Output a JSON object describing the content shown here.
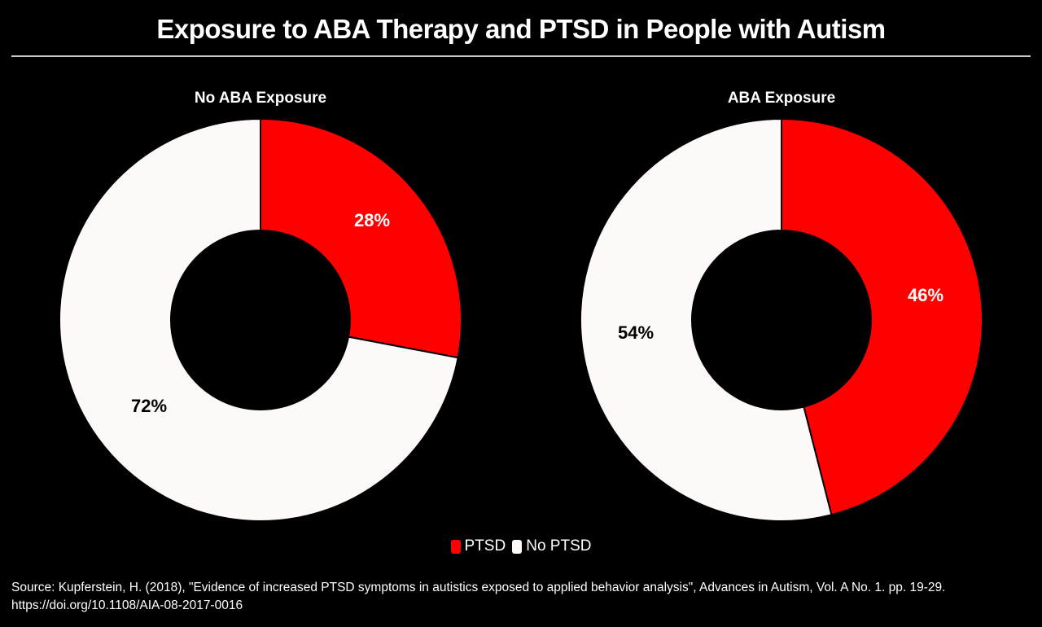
{
  "title": "Exposure to ABA Therapy and PTSD in People with Autism",
  "colors": {
    "background": "#000000",
    "ptsd": "#ff0000",
    "no_ptsd": "#fdf9f8",
    "divider": "#c8c8c8",
    "text": "#ffffff"
  },
  "legend": {
    "items": [
      {
        "label": "PTSD",
        "color": "#ff0000"
      },
      {
        "label": "No PTSD",
        "color": "#fdf9f8"
      }
    ]
  },
  "source": "Source: Kupferstein, H. (2018), \"Evidence of increased PTSD symptoms in autistics exposed to applied behavior analysis\", Advances in Autism, Vol. A No. 1. pp. 19-29. https://doi.org/10.1108/AIA-08-2017-0016",
  "chart_data": [
    {
      "type": "pie",
      "subtype": "donut",
      "title": "No ABA Exposure",
      "categories": [
        "PTSD",
        "No PTSD"
      ],
      "values": [
        28,
        72
      ],
      "labels": [
        "28%",
        "72%"
      ],
      "colors": [
        "#ff0000",
        "#fdf9f8"
      ],
      "start_angle": "12 o'clock, clockwise",
      "legend_position": "bottom"
    },
    {
      "type": "pie",
      "subtype": "donut",
      "title": "ABA Exposure",
      "categories": [
        "PTSD",
        "No PTSD"
      ],
      "values": [
        46,
        54
      ],
      "labels": [
        "46%",
        "54%"
      ],
      "colors": [
        "#ff0000",
        "#fdf9f8"
      ],
      "start_angle": "12 o'clock, clockwise",
      "legend_position": "bottom"
    }
  ]
}
